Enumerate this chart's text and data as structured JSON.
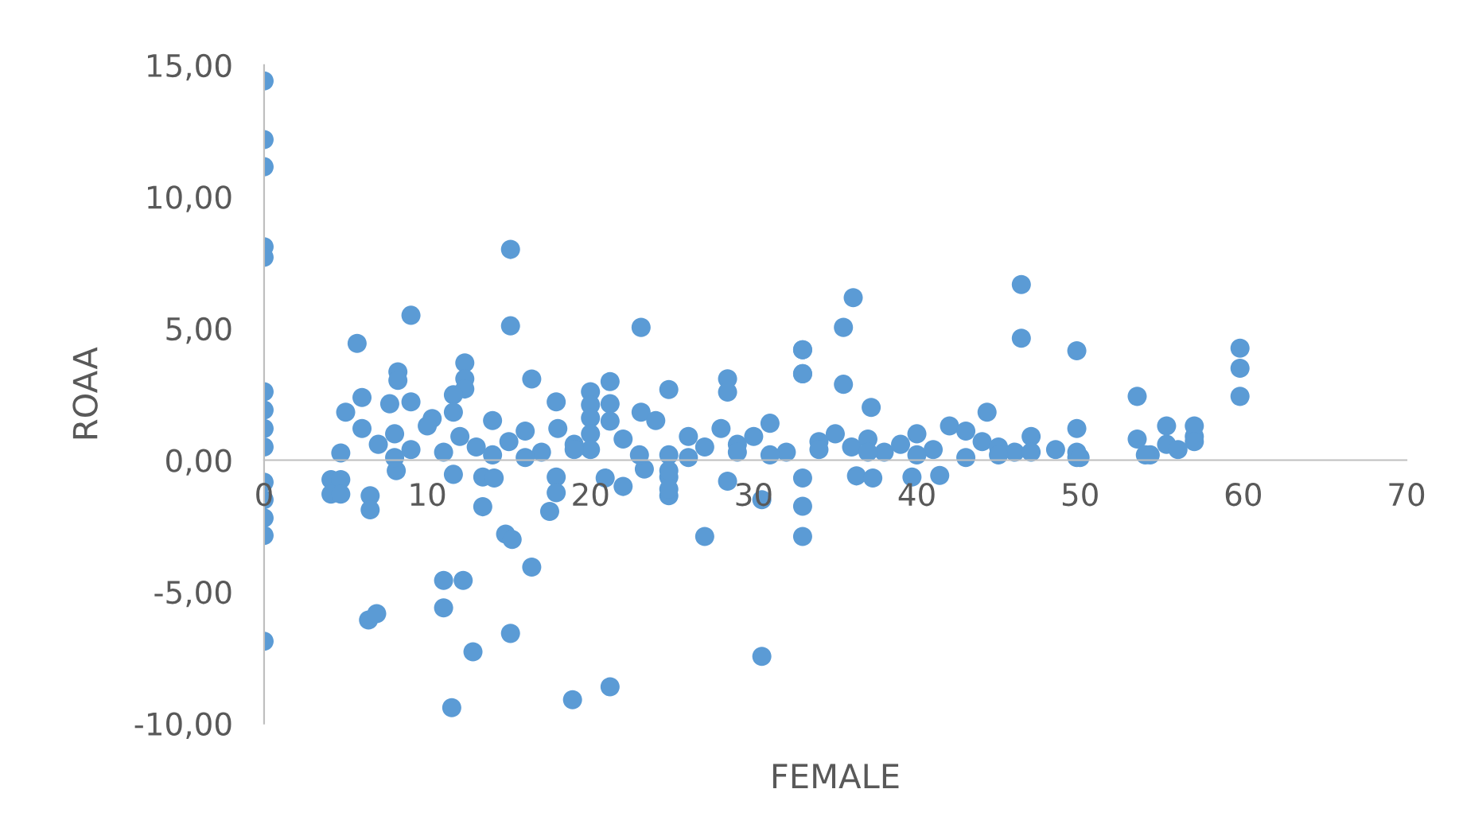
{
  "chart_data": {
    "type": "scatter",
    "xlabel": "FEMALE",
    "ylabel": "ROAA",
    "marker": "circle",
    "grid": false,
    "legend": false,
    "xlim": [
      0,
      70
    ],
    "xticks": [
      0,
      10,
      20,
      30,
      40,
      50,
      60,
      70
    ],
    "ylim": [
      -10,
      15
    ],
    "yticks": [
      {
        "value": -10,
        "label": "-10,00"
      },
      {
        "value": -5,
        "label": "-5,00"
      },
      {
        "value": 0,
        "label": "0,00"
      },
      {
        "value": 5,
        "label": "5,00"
      },
      {
        "value": 10,
        "label": "10,00"
      },
      {
        "value": 15,
        "label": "15,00"
      }
    ],
    "series": [
      {
        "color": "#5b9bd5",
        "x": [
          0,
          0,
          0,
          0,
          0,
          0,
          0,
          0,
          0,
          0,
          0,
          0,
          0,
          0,
          15.1,
          9.0,
          15.1,
          23.1,
          5.7,
          12.3,
          12.3,
          12.3,
          8.2,
          8.2,
          16.4,
          21.2,
          21.2,
          21.2,
          24.8,
          28.4,
          28.4,
          33,
          33,
          17.9,
          23.1,
          20,
          20,
          20,
          20,
          20,
          11.6,
          11.6,
          6.0,
          5.0,
          4.7,
          9.0,
          7.7,
          10.3,
          4.1,
          4.7,
          4.1,
          4.7,
          6.5,
          6.5,
          8.1,
          11.6,
          13.4,
          14.1,
          13.4,
          14.8,
          15.2,
          16.4,
          11.0,
          12.2,
          11.0,
          6.4,
          6.9,
          15.1,
          12.8,
          11.5,
          18.9,
          21.2,
          30.5,
          27.0,
          30.5,
          28.4,
          24.8,
          24.8,
          23.3,
          22.0,
          20.9,
          17.9,
          17.9,
          17.5,
          33,
          33,
          33,
          46.4,
          46.4,
          49.8,
          36.1,
          35.5,
          33,
          33,
          35.5,
          59.8,
          59.8,
          59.8,
          53.5,
          37.2,
          44.3,
          36.3,
          37.3,
          39.7,
          41.4,
          6,
          7,
          8,
          9,
          10,
          12,
          13,
          14,
          15,
          16,
          17,
          18,
          19,
          22,
          24,
          24.8,
          24.8,
          24.8,
          26,
          27,
          28,
          29,
          30,
          31,
          32,
          34,
          35,
          36,
          37,
          38,
          39,
          40,
          41,
          42,
          43,
          44,
          45,
          46,
          47,
          48.5,
          49.8,
          49.8,
          49.8,
          53.5,
          54.3,
          55.3,
          55.3,
          57,
          57,
          57,
          8,
          11,
          14,
          16,
          19,
          23,
          26,
          29,
          31,
          34,
          37,
          40,
          43,
          45,
          47,
          50,
          54,
          56
        ],
        "values": [
          14.4,
          12.17,
          11.14,
          8.1,
          7.7,
          2.6,
          1.9,
          1.2,
          0.5,
          -0.84,
          -1.5,
          -2.2,
          -2.86,
          -6.88,
          8.0,
          5.5,
          5.1,
          5.04,
          4.43,
          3.69,
          3.09,
          2.7,
          3.35,
          3.03,
          3.08,
          2.98,
          2.14,
          1.48,
          2.68,
          3.09,
          2.58,
          4.19,
          3.28,
          2.21,
          1.82,
          2.6,
          2.1,
          1.6,
          1.0,
          0.4,
          2.48,
          1.82,
          2.38,
          1.82,
          0.27,
          2.21,
          2.14,
          1.58,
          -0.74,
          -0.74,
          -1.29,
          -1.29,
          -1.35,
          -1.89,
          -0.4,
          -0.54,
          -0.64,
          -0.68,
          -1.77,
          -2.81,
          -3.01,
          -4.06,
          -4.57,
          -4.57,
          -5.61,
          -6.07,
          -5.83,
          -6.58,
          -7.28,
          -9.4,
          -9.1,
          -8.61,
          -7.45,
          -2.9,
          -1.5,
          -0.8,
          -1.35,
          -0.64,
          -0.34,
          -1.0,
          -0.68,
          -0.64,
          -1.24,
          -1.95,
          -0.68,
          -1.75,
          -2.9,
          6.67,
          4.63,
          4.15,
          6.17,
          5.04,
          4.19,
          3.28,
          2.88,
          4.25,
          3.49,
          2.42,
          2.42,
          2.0,
          1.82,
          -0.6,
          -0.68,
          -0.64,
          -0.58,
          1.2,
          0.6,
          1.0,
          0.4,
          1.3,
          0.9,
          0.5,
          1.5,
          0.7,
          1.1,
          0.3,
          1.2,
          0.6,
          0.8,
          1.5,
          0.2,
          -0.4,
          -1.1,
          0.9,
          0.5,
          1.2,
          0.6,
          0.9,
          1.4,
          0.3,
          0.7,
          1.0,
          0.5,
          0.8,
          0.3,
          0.6,
          1.0,
          0.4,
          1.3,
          1.1,
          0.7,
          0.5,
          0.3,
          0.9,
          0.4,
          0.1,
          1.2,
          0.3,
          0.8,
          0.2,
          0.6,
          1.3,
          0.9,
          1.3,
          0.7,
          0.1,
          0.3,
          0.2,
          0.1,
          0.4,
          0.2,
          0.1,
          0.3,
          0.2,
          0.4,
          0.3,
          0.2,
          0.1,
          0.2,
          0.3,
          0.1,
          0.2,
          0.4
        ]
      }
    ]
  }
}
